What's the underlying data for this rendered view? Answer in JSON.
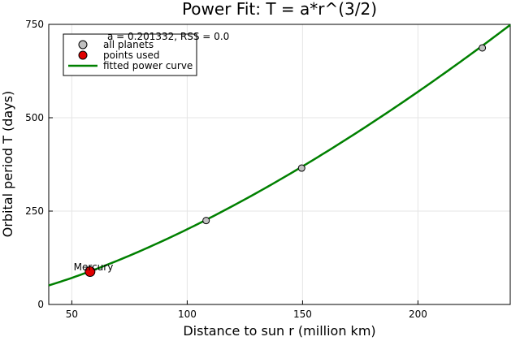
{
  "chart_data": {
    "type": "scatter",
    "title": "Power Fit: T = a*r^(3/2)",
    "xlabel": "Distance to sun r (million km)",
    "ylabel": "Orbital period T (days)",
    "xlim": [
      40,
      240
    ],
    "ylim": [
      0,
      750
    ],
    "xticks": [
      50,
      100,
      150,
      200
    ],
    "yticks": [
      0,
      250,
      500,
      750
    ],
    "grid": true,
    "legend_position": "top-left",
    "annotation": "a = 0.201332, RSS = 0.0",
    "point_label": "Mercury",
    "fit": {
      "a": 0.201332,
      "exponent": 1.5,
      "x_range": [
        40,
        240
      ]
    },
    "series": [
      {
        "name": "all planets",
        "kind": "scatter",
        "color": "#c0c0c0",
        "x": [
          57.9,
          108.2,
          149.6,
          227.9
        ],
        "y": [
          88.0,
          224.7,
          365.2,
          687.0
        ]
      },
      {
        "name": "points used",
        "kind": "scatter",
        "color": "#e00000",
        "x": [
          57.9
        ],
        "y": [
          88.0
        ]
      },
      {
        "name": "fitted power curve",
        "kind": "line",
        "color": "#008000"
      }
    ]
  }
}
